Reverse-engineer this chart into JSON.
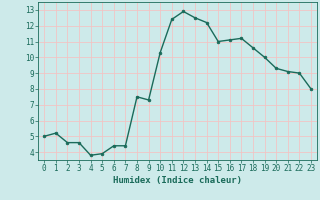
{
  "x": [
    0,
    1,
    2,
    3,
    4,
    5,
    6,
    7,
    8,
    9,
    10,
    11,
    12,
    13,
    14,
    15,
    16,
    17,
    18,
    19,
    20,
    21,
    22,
    23
  ],
  "y": [
    5.0,
    5.2,
    4.6,
    4.6,
    3.8,
    3.9,
    4.4,
    4.4,
    7.5,
    7.3,
    10.3,
    12.4,
    12.9,
    12.5,
    12.2,
    11.0,
    11.1,
    11.2,
    10.6,
    10.0,
    9.3,
    9.1,
    9.0,
    8.0
  ],
  "line_color": "#1a6b5a",
  "marker": "o",
  "marker_size": 2.0,
  "bg_color": "#cdeaea",
  "grid_color": "#f2c4c4",
  "xlabel": "Humidex (Indice chaleur)",
  "ylim": [
    3.5,
    13.5
  ],
  "xlim": [
    -0.5,
    23.5
  ],
  "yticks": [
    4,
    5,
    6,
    7,
    8,
    9,
    10,
    11,
    12,
    13
  ],
  "xticks": [
    0,
    1,
    2,
    3,
    4,
    5,
    6,
    7,
    8,
    9,
    10,
    11,
    12,
    13,
    14,
    15,
    16,
    17,
    18,
    19,
    20,
    21,
    22,
    23
  ],
  "xlabel_fontsize": 6.5,
  "tick_fontsize": 5.5,
  "line_width": 1.0
}
